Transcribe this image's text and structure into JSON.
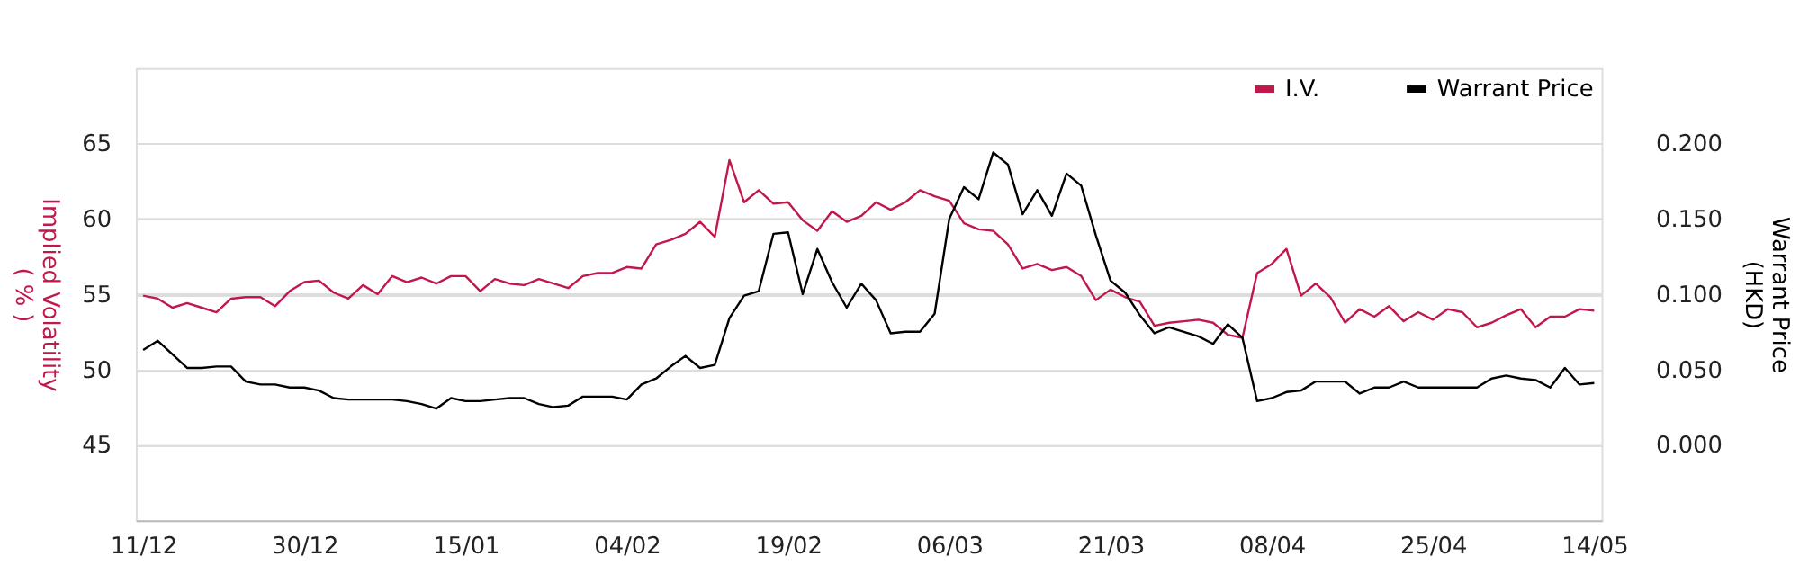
{
  "chart_data": {
    "type": "line",
    "categories": [
      "11/12",
      null,
      null,
      null,
      null,
      null,
      null,
      null,
      null,
      null,
      null,
      "30/12",
      null,
      null,
      null,
      null,
      null,
      null,
      null,
      null,
      null,
      null,
      "15/01",
      null,
      null,
      null,
      null,
      null,
      null,
      null,
      null,
      null,
      null,
      "04/02",
      null,
      null,
      null,
      null,
      null,
      null,
      null,
      null,
      null,
      null,
      "19/02",
      null,
      null,
      null,
      null,
      null,
      null,
      null,
      null,
      null,
      null,
      "06/03",
      null,
      null,
      null,
      null,
      null,
      null,
      null,
      null,
      null,
      null,
      "21/03",
      null,
      null,
      null,
      null,
      null,
      null,
      null,
      null,
      null,
      null,
      "08/04",
      null,
      null,
      null,
      null,
      null,
      null,
      null,
      null,
      null,
      null,
      "25/04",
      null,
      null,
      null,
      null,
      null,
      null,
      null,
      null,
      null,
      null,
      "14/05"
    ],
    "series": [
      {
        "name": "I.V.",
        "color": "#c0184a",
        "values": [
          54.9,
          54.7,
          54.1,
          54.4,
          54.1,
          53.8,
          54.7,
          54.8,
          54.8,
          54.2,
          55.2,
          55.8,
          55.9,
          55.1,
          54.7,
          55.6,
          55.0,
          56.2,
          55.8,
          56.1,
          55.7,
          56.2,
          56.2,
          55.2,
          56.0,
          55.7,
          55.6,
          56.0,
          55.7,
          55.4,
          56.2,
          56.4,
          56.4,
          56.8,
          56.7,
          58.3,
          58.6,
          59.0,
          59.8,
          58.8,
          63.9,
          61.1,
          61.9,
          61.0,
          61.1,
          59.9,
          59.2,
          60.5,
          59.8,
          60.2,
          61.1,
          60.6,
          61.1,
          61.9,
          61.5,
          61.2,
          59.7,
          59.3,
          59.2,
          58.3,
          56.7,
          57.0,
          56.6,
          56.8,
          56.2,
          54.6,
          55.3,
          54.8,
          54.5,
          52.9,
          53.1,
          53.2,
          53.3,
          53.1,
          52.3,
          52.1,
          56.4,
          57.0,
          58.0,
          54.9,
          55.7,
          54.8,
          53.1,
          54.0,
          53.5,
          54.2,
          53.2,
          53.8,
          53.3,
          54.0,
          53.8,
          52.8,
          53.1,
          53.6,
          54.0,
          52.8,
          53.5,
          53.5,
          54.0,
          53.9
        ]
      },
      {
        "name": "Warrant Price",
        "color": "#000000",
        "axis": "y2",
        "values": [
          0.063,
          0.069,
          0.06,
          0.051,
          0.051,
          0.052,
          0.052,
          0.042,
          0.04,
          0.04,
          0.038,
          0.038,
          0.036,
          0.031,
          0.03,
          0.03,
          0.03,
          0.03,
          0.029,
          0.027,
          0.024,
          0.031,
          0.029,
          0.029,
          0.03,
          0.031,
          0.031,
          0.027,
          0.025,
          0.026,
          0.032,
          0.032,
          0.032,
          0.03,
          0.04,
          0.044,
          0.052,
          0.059,
          0.051,
          0.053,
          0.084,
          0.099,
          0.102,
          0.14,
          0.141,
          0.1,
          0.13,
          0.108,
          0.091,
          0.107,
          0.096,
          0.074,
          0.075,
          0.075,
          0.087,
          0.15,
          0.171,
          0.163,
          0.194,
          0.186,
          0.153,
          0.169,
          0.152,
          0.18,
          0.172,
          0.139,
          0.109,
          0.101,
          0.086,
          0.074,
          0.078,
          0.075,
          0.072,
          0.067,
          0.08,
          0.071,
          0.029,
          0.031,
          0.035,
          0.036,
          0.042,
          0.042,
          0.042,
          0.034,
          0.038,
          0.038,
          0.042,
          0.038,
          0.038,
          0.038,
          0.038,
          0.038,
          0.044,
          0.046,
          0.044,
          0.043,
          0.038,
          0.051,
          0.04,
          0.041
        ]
      }
    ],
    "ylabel": "Implied Volatility ( % )",
    "y2label": "Warrant Price (HKD)",
    "ylim": [
      40,
      70
    ],
    "yticks": [
      45,
      50,
      55,
      60,
      65
    ],
    "y2lim": [
      -0.05,
      0.25
    ],
    "y2ticks": [
      {
        "value": 0,
        "label": "0.000"
      },
      {
        "value": 0.05,
        "label": "0.050"
      },
      {
        "value": 0.1,
        "label": "0.100"
      },
      {
        "value": 0.15,
        "label": "0.150"
      },
      {
        "value": 0.2,
        "label": "0.200"
      }
    ],
    "grid": "y",
    "legend": "top right",
    "marker": "none",
    "line_style": "solid"
  }
}
